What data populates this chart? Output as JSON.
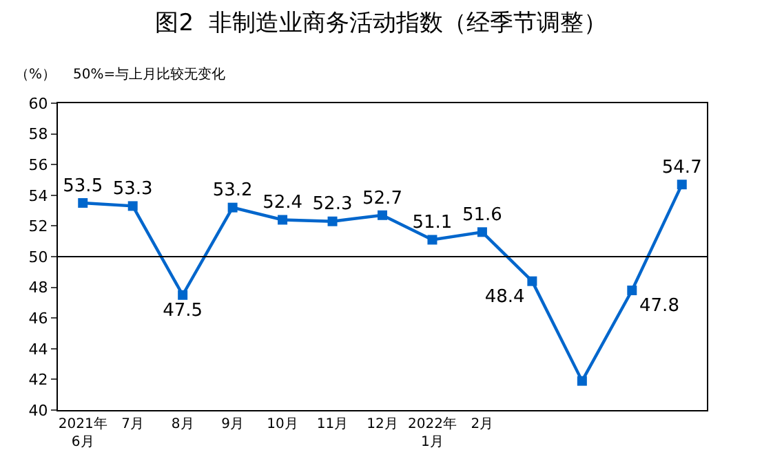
{
  "chart_data": {
    "type": "line",
    "title": "图2  非制造业商务活动指数（经季节调整）",
    "ylabel": "（%）",
    "annotations": [
      "50%=与上月比较无变化"
    ],
    "categories": [
      "2021年\n6月",
      "7月",
      "8月",
      "9月",
      "10月",
      "11月",
      "12月",
      "2022年\n1月",
      "2月",
      null,
      null,
      null,
      null
    ],
    "series": [
      {
        "color": "#0066cc",
        "values": [
          53.5,
          53.3,
          47.5,
          53.2,
          52.4,
          52.3,
          52.7,
          51.1,
          51.6,
          48.4,
          41.9,
          47.8,
          54.7
        ],
        "value_labels": [
          "53.5",
          "53.3",
          "47.5",
          "53.2",
          "52.4",
          "52.3",
          "52.7",
          "51.1",
          "51.6",
          "48.4",
          null,
          "47.8",
          "54.7"
        ]
      }
    ],
    "ylim": [
      40,
      60
    ],
    "yticks": [
      40,
      42,
      44,
      46,
      48,
      50,
      52,
      54,
      56,
      58,
      60
    ],
    "ref_lines": [
      {
        "axis": "y",
        "value": 50,
        "color": "#000000"
      }
    ],
    "marker": "square",
    "line_style": "solid"
  }
}
